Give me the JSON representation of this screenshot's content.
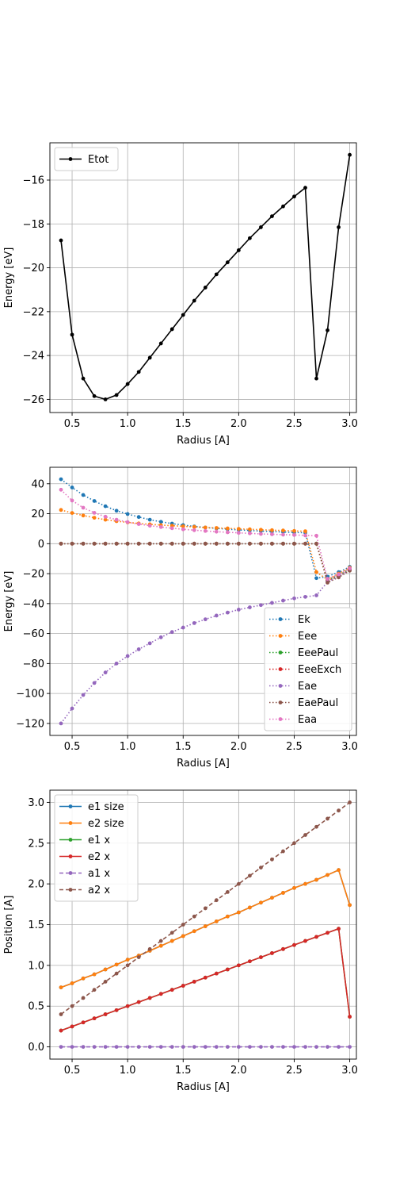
{
  "chart_data": [
    {
      "type": "line",
      "xlabel": "Radius [A]",
      "ylabel": "Energy [eV]",
      "xlim": [
        0.3,
        3.06
      ],
      "ylim": [
        -26.6,
        -14.3
      ],
      "xticks": [
        0.5,
        1.0,
        1.5,
        2.0,
        2.5,
        3.0
      ],
      "xtick_labels": [
        "0.5",
        "1.0",
        "1.5",
        "2.0",
        "2.5",
        "3.0"
      ],
      "yticks": [
        -26,
        -24,
        -22,
        -20,
        -18,
        -16
      ],
      "ytick_labels": [
        "−26",
        "−24",
        "−22",
        "−20",
        "−18",
        "−16"
      ],
      "grid": true,
      "legend_position": "upper-left",
      "x": [
        0.4,
        0.5,
        0.6,
        0.7,
        0.8,
        0.9,
        1.0,
        1.1,
        1.2,
        1.3,
        1.4,
        1.5,
        1.6,
        1.7,
        1.8,
        1.9,
        2.0,
        2.1,
        2.2,
        2.3,
        2.4,
        2.5,
        2.6,
        2.7,
        2.8,
        2.9,
        3.0
      ],
      "series": [
        {
          "name": "Etot",
          "color": "#000000",
          "style": "solid",
          "values": [
            -18.75,
            -23.05,
            -25.05,
            -25.85,
            -26.0,
            -25.8,
            -25.3,
            -24.75,
            -24.1,
            -23.45,
            -22.8,
            -22.15,
            -21.5,
            -20.9,
            -20.3,
            -19.75,
            -19.2,
            -18.65,
            -18.15,
            -17.65,
            -17.2,
            -16.75,
            -16.35,
            -25.05,
            -22.85,
            -18.15,
            -14.85
          ]
        }
      ]
    },
    {
      "type": "line",
      "xlabel": "Radius [A]",
      "ylabel": "Energy [eV]",
      "xlim": [
        0.3,
        3.06
      ],
      "ylim": [
        -128,
        51
      ],
      "xticks": [
        0.5,
        1.0,
        1.5,
        2.0,
        2.5,
        3.0
      ],
      "xtick_labels": [
        "0.5",
        "1.0",
        "1.5",
        "2.0",
        "2.5",
        "3.0"
      ],
      "yticks": [
        -120,
        -100,
        -80,
        -60,
        -40,
        -20,
        0,
        20,
        40
      ],
      "ytick_labels": [
        "−120",
        "−100",
        "−80",
        "−60",
        "−40",
        "−20",
        "0",
        "20",
        "40"
      ],
      "grid": true,
      "legend_position": "lower-right",
      "x": [
        0.4,
        0.5,
        0.6,
        0.7,
        0.8,
        0.9,
        1.0,
        1.1,
        1.2,
        1.3,
        1.4,
        1.5,
        1.6,
        1.7,
        1.8,
        1.9,
        2.0,
        2.1,
        2.2,
        2.3,
        2.4,
        2.5,
        2.6,
        2.7,
        2.8,
        2.9,
        3.0
      ],
      "series": [
        {
          "name": "Ek",
          "color": "#1f77b4",
          "style": "dotted",
          "values": [
            43.0,
            37.5,
            32.5,
            28.5,
            25.0,
            22.0,
            19.8,
            17.8,
            16.0,
            14.6,
            13.4,
            12.4,
            11.5,
            10.8,
            10.2,
            9.7,
            9.2,
            8.8,
            8.4,
            8.1,
            7.8,
            7.5,
            7.3,
            -23.0,
            -22.0,
            -19.0,
            -15.5
          ]
        },
        {
          "name": "Eee",
          "color": "#ff7f0e",
          "style": "dotted",
          "values": [
            22.5,
            20.5,
            18.8,
            17.3,
            16.0,
            15.0,
            14.2,
            13.5,
            12.9,
            12.4,
            12.0,
            11.6,
            11.2,
            10.8,
            10.5,
            10.2,
            9.9,
            9.6,
            9.3,
            9.0,
            8.8,
            8.5,
            8.3,
            -19.0,
            -24.0,
            -20.0,
            -16.0
          ]
        },
        {
          "name": "EeePaul",
          "color": "#2ca02c",
          "style": "dotted",
          "values": [
            0,
            0,
            0,
            0,
            0,
            0,
            0,
            0,
            0,
            0,
            0,
            0,
            0,
            0,
            0,
            0,
            0,
            0,
            0,
            0,
            0,
            0,
            0,
            0,
            -24.5,
            -21.0,
            -17.0
          ]
        },
        {
          "name": "EeeExch",
          "color": "#d62728",
          "style": "dotted",
          "values": [
            0,
            0,
            0,
            0,
            0,
            0,
            0,
            0,
            0,
            0,
            0,
            0,
            0,
            0,
            0,
            0,
            0,
            0,
            0,
            0,
            0,
            0,
            0,
            0,
            -25.0,
            -21.5,
            -17.5
          ]
        },
        {
          "name": "Eae",
          "color": "#9467bd",
          "style": "dotted",
          "values": [
            -120.0,
            -110.0,
            -101.0,
            -93.0,
            -86.0,
            -80.0,
            -75.0,
            -70.5,
            -66.5,
            -62.5,
            -59.0,
            -56.0,
            -53.0,
            -50.5,
            -48.0,
            -46.0,
            -44.0,
            -42.5,
            -41.0,
            -39.5,
            -38.0,
            -36.5,
            -35.5,
            -34.5,
            -25.5,
            -22.0,
            -17.5
          ]
        },
        {
          "name": "EaePaul",
          "color": "#8c564b",
          "style": "dotted",
          "values": [
            0,
            0,
            0,
            0,
            0,
            0,
            0,
            0,
            0,
            0,
            0,
            0,
            0,
            0,
            0,
            0,
            0,
            0,
            0,
            0,
            0,
            0,
            0,
            0,
            -26.0,
            -22.5,
            -18.0
          ]
        },
        {
          "name": "Eaa",
          "color": "#e377c2",
          "style": "dotted",
          "values": [
            36.0,
            28.8,
            24.0,
            20.6,
            18.0,
            16.0,
            14.4,
            13.1,
            12.0,
            11.1,
            10.3,
            9.6,
            9.0,
            8.5,
            8.0,
            7.6,
            7.2,
            6.9,
            6.5,
            6.3,
            6.0,
            5.8,
            5.5,
            5.3,
            -23.5,
            -20.5,
            -16.5
          ]
        }
      ]
    },
    {
      "type": "line",
      "xlabel": "Radius   [A]",
      "ylabel": "Position [A]",
      "xlim": [
        0.3,
        3.06
      ],
      "ylim": [
        -0.15,
        3.15
      ],
      "xticks": [
        0.5,
        1.0,
        1.5,
        2.0,
        2.5,
        3.0
      ],
      "xtick_labels": [
        "0.5",
        "1.0",
        "1.5",
        "2.0",
        "2.5",
        "3.0"
      ],
      "yticks": [
        0.0,
        0.5,
        1.0,
        1.5,
        2.0,
        2.5,
        3.0
      ],
      "ytick_labels": [
        "0.0",
        "0.5",
        "1.0",
        "1.5",
        "2.0",
        "2.5",
        "3.0"
      ],
      "grid": true,
      "legend_position": "upper-left",
      "x": [
        0.4,
        0.5,
        0.6,
        0.7,
        0.8,
        0.9,
        1.0,
        1.1,
        1.2,
        1.3,
        1.4,
        1.5,
        1.6,
        1.7,
        1.8,
        1.9,
        2.0,
        2.1,
        2.2,
        2.3,
        2.4,
        2.5,
        2.6,
        2.7,
        2.8,
        2.9,
        3.0
      ],
      "series": [
        {
          "name": "e1 size",
          "color": "#1f77b4",
          "style": "solid",
          "values": [
            0.73,
            0.78,
            0.84,
            0.89,
            0.95,
            1.01,
            1.07,
            1.12,
            1.18,
            1.24,
            1.3,
            1.36,
            1.42,
            1.48,
            1.54,
            1.6,
            1.65,
            1.71,
            1.77,
            1.83,
            1.89,
            1.95,
            2.0,
            2.05,
            2.11,
            2.17,
            1.74
          ]
        },
        {
          "name": "e2 size",
          "color": "#ff7f0e",
          "style": "solid",
          "values": [
            0.73,
            0.78,
            0.84,
            0.89,
            0.95,
            1.01,
            1.07,
            1.12,
            1.18,
            1.24,
            1.3,
            1.36,
            1.42,
            1.48,
            1.54,
            1.6,
            1.65,
            1.71,
            1.77,
            1.83,
            1.89,
            1.95,
            2.0,
            2.05,
            2.11,
            2.17,
            1.74
          ]
        },
        {
          "name": "e1 x",
          "color": "#2ca02c",
          "style": "solid",
          "values": [
            0.2,
            0.25,
            0.3,
            0.35,
            0.4,
            0.45,
            0.5,
            0.55,
            0.6,
            0.65,
            0.7,
            0.75,
            0.8,
            0.85,
            0.9,
            0.95,
            1.0,
            1.05,
            1.1,
            1.15,
            1.2,
            1.25,
            1.3,
            1.35,
            1.4,
            1.45,
            0.37
          ]
        },
        {
          "name": "e2 x",
          "color": "#d62728",
          "style": "solid",
          "values": [
            0.2,
            0.25,
            0.3,
            0.35,
            0.4,
            0.45,
            0.5,
            0.55,
            0.6,
            0.65,
            0.7,
            0.75,
            0.8,
            0.85,
            0.9,
            0.95,
            1.0,
            1.05,
            1.1,
            1.15,
            1.2,
            1.25,
            1.3,
            1.35,
            1.4,
            1.45,
            0.37
          ]
        },
        {
          "name": "a1 x",
          "color": "#9467bd",
          "style": "dashed",
          "values": [
            0,
            0,
            0,
            0,
            0,
            0,
            0,
            0,
            0,
            0,
            0,
            0,
            0,
            0,
            0,
            0,
            0,
            0,
            0,
            0,
            0,
            0,
            0,
            0,
            0,
            0,
            0
          ]
        },
        {
          "name": "a2 x",
          "color": "#8c564b",
          "style": "dashed",
          "values": [
            0.4,
            0.5,
            0.6,
            0.7,
            0.8,
            0.9,
            1.0,
            1.1,
            1.2,
            1.3,
            1.4,
            1.5,
            1.6,
            1.7,
            1.8,
            1.9,
            2.0,
            2.1,
            2.2,
            2.3,
            2.4,
            2.5,
            2.6,
            2.7,
            2.8,
            2.9,
            3.0
          ]
        }
      ]
    }
  ]
}
